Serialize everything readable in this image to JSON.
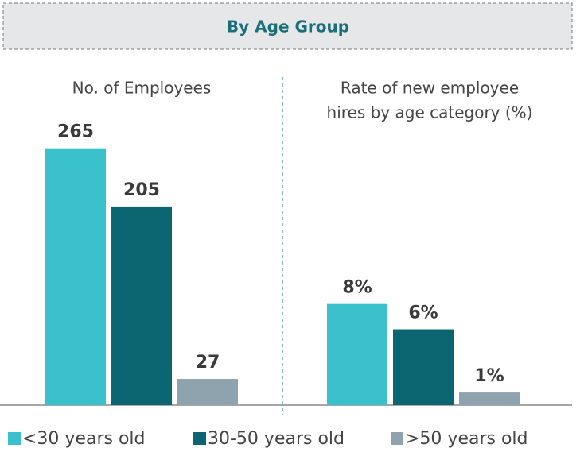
{
  "header": "By Age Group",
  "legend": {
    "categories": [
      "<30 years old",
      "30-50 years old",
      ">50 years old"
    ],
    "colors": [
      "#3bc1cc",
      "#0c6672",
      "#8ea3ad"
    ]
  },
  "chart_data": [
    {
      "type": "bar",
      "title": [
        "No. of Employees"
      ],
      "values": [
        265,
        205,
        27
      ],
      "ylim": [
        0,
        300
      ]
    },
    {
      "type": "bar",
      "title": [
        "Rate of new employee",
        "hires by age category (%)"
      ],
      "values": [
        8,
        6,
        1
      ],
      "value_labels": [
        "8%",
        "6%",
        "1%"
      ],
      "ylim": [
        0,
        23
      ]
    }
  ]
}
